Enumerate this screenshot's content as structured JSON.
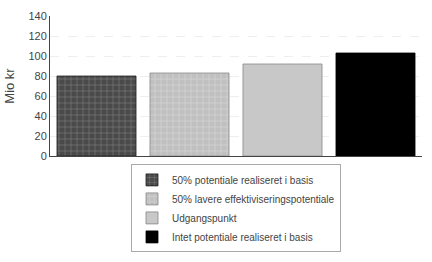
{
  "chart_data": {
    "type": "bar",
    "ylabel": "Mio kr",
    "categories": [
      null,
      null,
      null,
      null
    ],
    "series": [
      {
        "name": "50% potentiale realiseret i basis",
        "color": "#4a4a4a",
        "values": [
          80,
          null,
          null,
          null
        ]
      },
      {
        "name": "50% lavere effektiviseringspotentiale",
        "color": "#c0c0c0",
        "values": [
          null,
          83,
          null,
          null
        ]
      },
      {
        "name": "Udgangspunkt",
        "color": "#c8c8c8",
        "values": [
          null,
          null,
          92,
          null
        ]
      },
      {
        "name": "Intet potentiale realiseret i basis",
        "color": "#000000",
        "values": [
          null,
          null,
          null,
          103
        ]
      }
    ],
    "ylim": [
      0,
      140
    ],
    "yticks": [
      0,
      20,
      40,
      60,
      80,
      100,
      120,
      140
    ],
    "grid": true,
    "legend": "bottom",
    "tick_labels": "y"
  }
}
